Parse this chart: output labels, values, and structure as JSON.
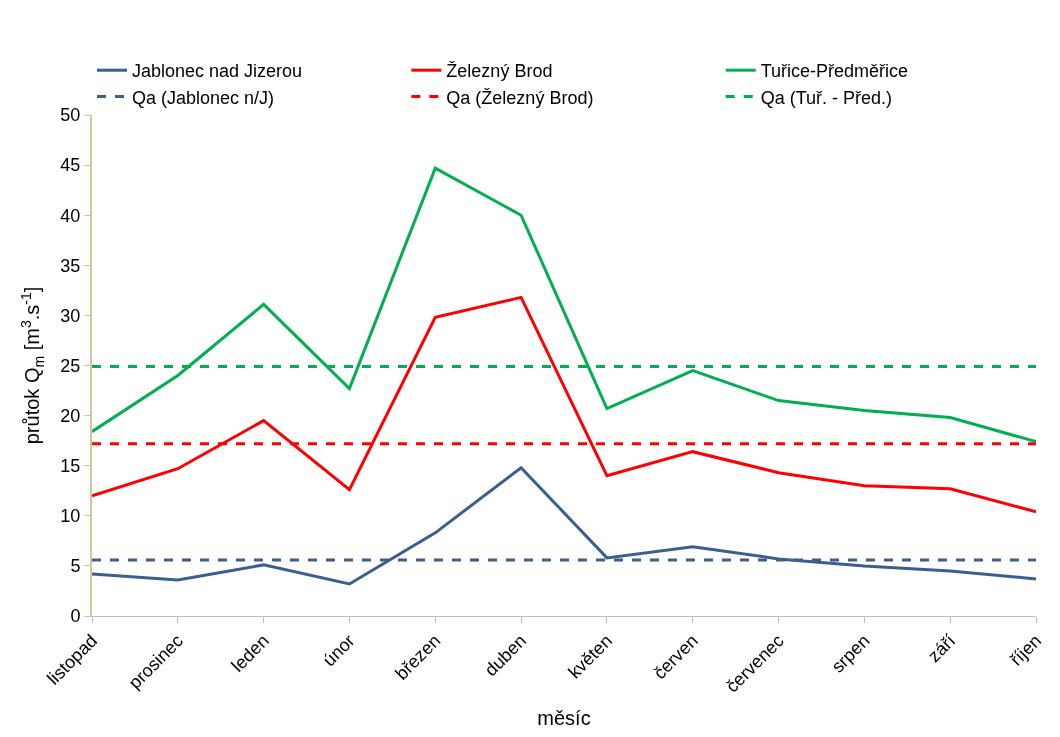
{
  "chart_data": {
    "type": "line",
    "xlabel": "měsíc",
    "ylabel": "průtok Q$_{m}$ [m$^{3}$.s$^{-1}$]",
    "categories": [
      "listopad",
      "prosinec",
      "leden",
      "únor",
      "březen",
      "duben",
      "květen",
      "červen",
      "červenec",
      "srpen",
      "září",
      "říjen"
    ],
    "series": [
      {
        "name": "Jablonec nad Jizerou",
        "color": "#3a5f8f",
        "line_style": "solid",
        "values": [
          4.2,
          3.6,
          5.1,
          3.2,
          8.3,
          14.8,
          5.8,
          6.9,
          5.7,
          5.0,
          4.5,
          3.7
        ]
      },
      {
        "name": "Železný Brod",
        "color": "#ff0000",
        "line_style": "solid",
        "values": [
          12.0,
          14.7,
          19.5,
          12.6,
          29.8,
          31.8,
          14.0,
          16.4,
          14.3,
          13.0,
          12.7,
          10.4
        ]
      },
      {
        "name": "Tuřice-Předměřice",
        "color": "#00b050",
        "line_style": "solid",
        "values": [
          18.4,
          24.0,
          31.1,
          22.7,
          44.7,
          40.0,
          20.7,
          24.5,
          21.5,
          20.5,
          19.8,
          17.4
        ]
      },
      {
        "name": "Qa (Jablonec n/J)",
        "color": "#3a5f8f",
        "line_style": "dashed",
        "values": [
          5.6,
          5.6,
          5.6,
          5.6,
          5.6,
          5.6,
          5.6,
          5.6,
          5.6,
          5.6,
          5.6,
          5.6
        ]
      },
      {
        "name": "Qa (Železný Brod)",
        "color": "#ff0000",
        "line_style": "dashed",
        "values": [
          17.2,
          17.2,
          17.2,
          17.2,
          17.2,
          17.2,
          17.2,
          17.2,
          17.2,
          17.2,
          17.2,
          17.2
        ]
      },
      {
        "name": "Qa (Tuř. - Před.)",
        "color": "#00b050",
        "line_style": "dashed",
        "values": [
          24.9,
          24.9,
          24.9,
          24.9,
          24.9,
          24.9,
          24.9,
          24.9,
          24.9,
          24.9,
          24.9,
          24.9
        ]
      }
    ],
    "ylim": [
      0,
      50
    ],
    "yticks": [
      0,
      5,
      10,
      15,
      20,
      25,
      30,
      35,
      40,
      45,
      50
    ],
    "legend": "top",
    "marker": "none"
  }
}
